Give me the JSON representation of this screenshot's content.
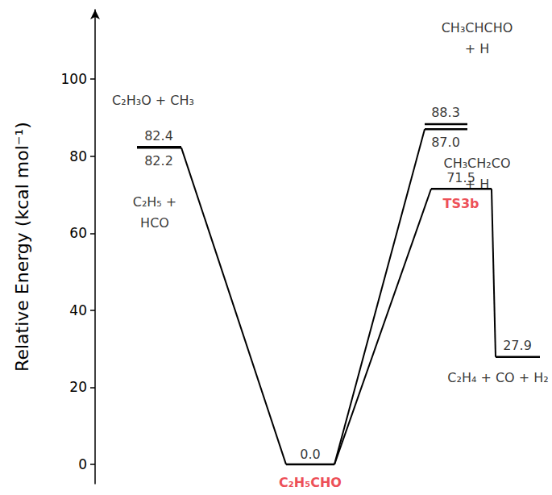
{
  "chart_data": {
    "type": "energy_diagram",
    "y_label": "Relative Energy (kcal mol⁻¹)",
    "ylim": [
      -5,
      118
    ],
    "yticks": [
      0,
      20,
      40,
      60,
      80,
      100
    ],
    "grid": false,
    "tick_labels": "y",
    "data_labels": true,
    "levels": [
      {
        "name": "C₂H₃O + CH₃",
        "value": 82.4,
        "value_label": "82.4",
        "color": "#000000"
      },
      {
        "name": "C₂H₅ +\nHCO",
        "value": 82.2,
        "value_label": "82.2",
        "color": "#000000"
      },
      {
        "name": "C₂H₅CHO",
        "value": 0.0,
        "value_label": "0.0",
        "color": "#e8202a"
      },
      {
        "name": "CH₃CHCHO\n+ H",
        "value": 88.3,
        "value_label": "88.3",
        "color": "#000000"
      },
      {
        "name": "CH₃CH₂CO\n+ H",
        "value": 87.0,
        "value_label": "87.0",
        "color": "#000000"
      },
      {
        "name": "TS3b",
        "value": 71.5,
        "value_label": "71.5",
        "color": "#e8202a"
      },
      {
        "name": "C₂H₄ + CO + H₂",
        "value": 27.9,
        "value_label": "27.9",
        "color": "#000000"
      }
    ],
    "connections": [
      [
        "C₂H₅CHO",
        "C₂H₅ +\nHCO"
      ],
      [
        "C₂H₅CHO",
        "CH₃CH₂CO\n+ H"
      ],
      [
        "C₂H₅CHO",
        "TS3b"
      ],
      [
        "TS3b",
        "C₂H₄ + CO + H₂"
      ]
    ]
  }
}
